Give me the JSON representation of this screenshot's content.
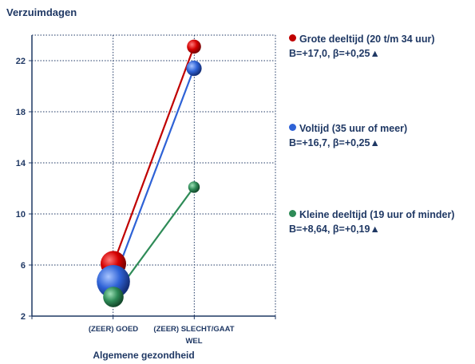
{
  "chart_data": {
    "type": "line",
    "ylabel": "Verzuimdagen",
    "xlabel": "Algemene gezondheid",
    "categories": [
      "(ZEER) GOED",
      "(ZEER) SLECHT/GAAT WEL"
    ],
    "ylim": [
      2,
      24
    ],
    "yticks": [
      2,
      6,
      10,
      14,
      18,
      22
    ],
    "grid": true,
    "legend_position": "right",
    "series": [
      {
        "name": "Grote deeltijd (20 t/m 34 uur)",
        "stat": "B=+17,0, β=+0,25▲",
        "values": [
          6.1,
          23.1
        ],
        "color": "#c00000",
        "size": [
          1.0,
          0.55
        ]
      },
      {
        "name": "Voltijd (35 uur of meer)",
        "stat": "B=+16,7, β=+0,25▲",
        "values": [
          4.7,
          21.4
        ],
        "color": "#2e62d6",
        "size": [
          1.3,
          0.6
        ]
      },
      {
        "name": "Kleine deeltijd (19 uur of minder)",
        "stat": "B=+8,64, β=+0,19▲",
        "values": [
          3.5,
          12.1
        ],
        "color": "#2e8b57",
        "size": [
          0.8,
          0.45
        ]
      }
    ]
  }
}
